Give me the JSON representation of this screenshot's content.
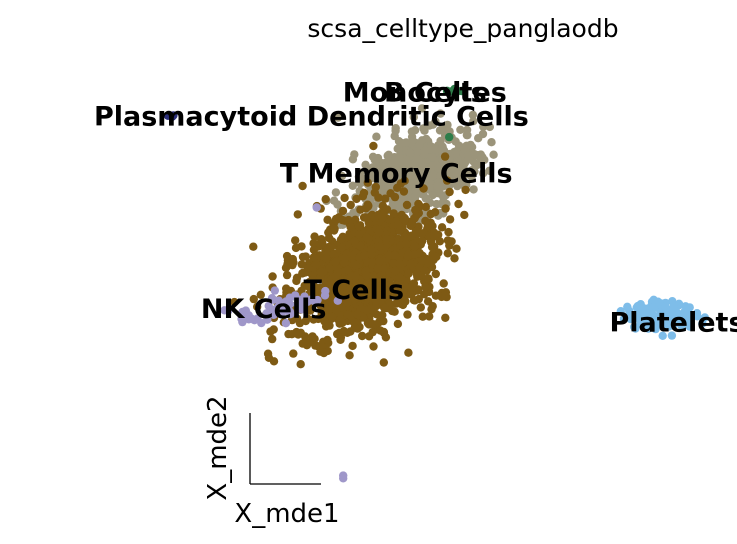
{
  "chart_data": {
    "type": "scatter",
    "title": "scsa_celltype_panglaodb",
    "xlabel": "X_mde1",
    "ylabel": "X_mde2",
    "grid": false,
    "legend": "on data",
    "clusters": [
      {
        "name": "Monocytes",
        "color": "#9b947a",
        "cx": 0.2,
        "cy": 1.05,
        "sx": 0.17,
        "sy": 0.26,
        "n": 620,
        "rot": -0.95
      },
      {
        "name": "B Cells",
        "color": "#2e7d4a",
        "cx": 0.48,
        "cy": 2.55,
        "sx": 0.05,
        "sy": 0.03,
        "n": 8,
        "rot": 0
      },
      {
        "name": "T Memory Cells",
        "color": "#9b947a",
        "cx": 0.1,
        "cy": 0.95,
        "sx": 0.22,
        "sy": 0.55,
        "n": 400,
        "rot": -0.35
      },
      {
        "name": "T Cells",
        "color": "#7e5a14",
        "cx": -0.35,
        "cy": -0.75,
        "sx": 0.3,
        "sy": 0.62,
        "n": 1300,
        "rot": -0.3
      },
      {
        "name": "NK Cells",
        "color": "#9f97c9",
        "cx": -1.15,
        "cy": -1.45,
        "sx": 0.22,
        "sy": 0.12,
        "n": 55,
        "rot": 0.6
      },
      {
        "name": "Plasmacytoid Dendritic Cells",
        "color": "#2c2f7a",
        "cx": -2.15,
        "cy": 2.1,
        "sx": 0.04,
        "sy": 0.03,
        "n": 4,
        "rot": 0
      },
      {
        "name": "Platelets",
        "color": "#7ebde9",
        "cx": 2.45,
        "cy": -1.6,
        "sx": 0.16,
        "sy": 0.12,
        "n": 170,
        "rot": 0
      }
    ],
    "extra_points": [
      {
        "x": -0.55,
        "y": -4.55,
        "color": "#9f97c9"
      },
      {
        "x": -0.55,
        "y": -4.6,
        "color": "#9f97c9"
      },
      {
        "x": -0.8,
        "y": 0.4,
        "color": "#9f97c9"
      },
      {
        "x": -0.6,
        "y": 2.06,
        "color": "#9b947a"
      },
      {
        "x": 0.45,
        "y": 1.7,
        "color": "#2e7d4a"
      }
    ],
    "labels": [
      {
        "text": "Plasmacytoid Dendritic Cells",
        "x": -0.85,
        "y": 2.05
      },
      {
        "text": "Monocytes",
        "x": 0.22,
        "y": 2.5
      },
      {
        "text": "B Cells",
        "x": 0.32,
        "y": 2.5
      },
      {
        "text": "T Memory Cells",
        "x": -0.05,
        "y": 1.0
      },
      {
        "text": "T Cells",
        "x": -0.45,
        "y": -1.15
      },
      {
        "text": "NK Cells",
        "x": -1.3,
        "y": -1.5
      },
      {
        "text": "Platelets",
        "x": 2.6,
        "y": -1.75
      }
    ],
    "xlim": [
      -3.6,
      3.1
    ],
    "ylim": [
      -5.0,
      3.4
    ]
  }
}
